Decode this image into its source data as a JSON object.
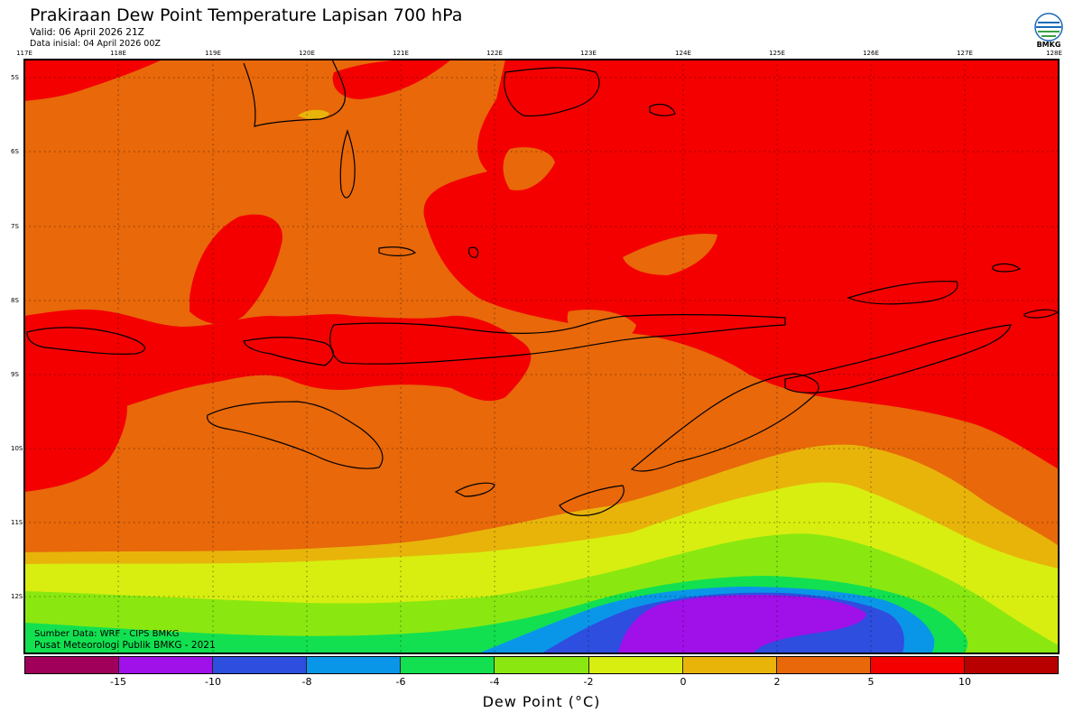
{
  "header": {
    "title": "Prakiraan Dew Point Temperature Lapisan 700 hPa",
    "valid": "Valid: 06 April 2026 21Z",
    "initial": "Data inisial: 04 April 2026 00Z",
    "logo_text": "BMKG"
  },
  "map": {
    "lon_labels": [
      "117E",
      "118E",
      "119E",
      "120E",
      "121E",
      "122E",
      "123E",
      "124E",
      "125E",
      "126E",
      "127E",
      "128E"
    ],
    "lat_labels": [
      "5S",
      "6S",
      "7S",
      "8S",
      "9S",
      "10S",
      "11S",
      "12S"
    ],
    "credit_source": "Sumber Data: WRF - CIPS BMKG",
    "credit_org": "Pusat Meteorologi Publik BMKG - 2021"
  },
  "colorbar": {
    "colors": [
      "#a0005a",
      "#a010e8",
      "#2e4ee0",
      "#0a96e8",
      "#12e050",
      "#8ae810",
      "#d8ee10",
      "#e8b40a",
      "#e8680a",
      "#f40000",
      "#b80000"
    ],
    "ticks": [
      "-15",
      "-10",
      "-8",
      "-6",
      "-4",
      "-2",
      "0",
      "2",
      "5",
      "10"
    ],
    "label": "Dew Point (°C)"
  }
}
